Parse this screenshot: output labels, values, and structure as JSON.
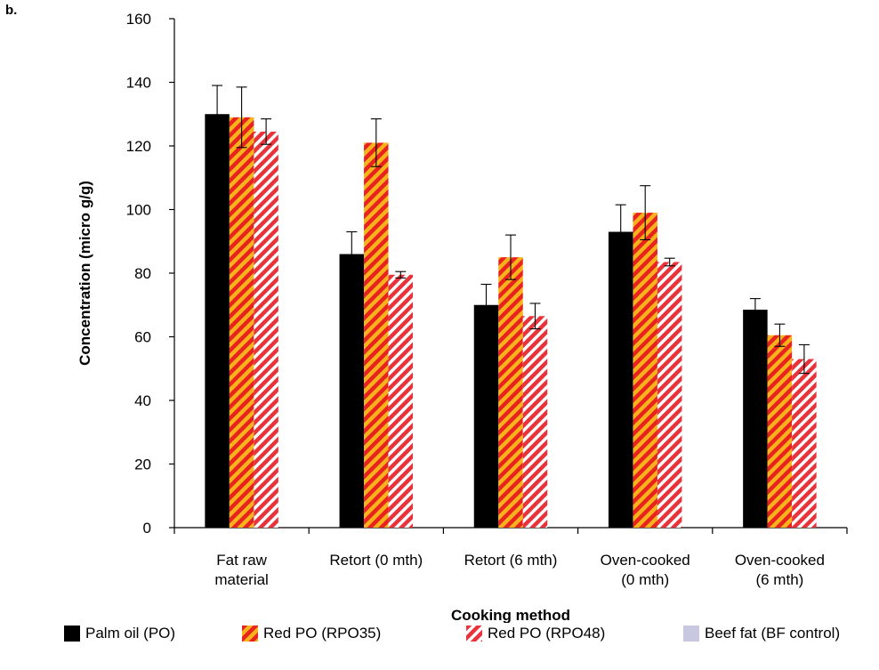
{
  "panel_label": "b.",
  "colors": {
    "axis": "#000000",
    "palm_oil": "#000000",
    "rpo35_primary": "#e8221e",
    "rpo35_secondary": "#f7b21c",
    "rpo48_primary": "#e8333b",
    "rpo48_secondary": "#ffffff",
    "beef_fat": "#c8c8e0"
  },
  "chart_data": {
    "type": "bar",
    "title": "",
    "xlabel": "Cooking method",
    "ylabel": "Concentration (micro g/g)",
    "ylim": [
      0,
      160
    ],
    "yticks": [
      "0",
      "20",
      "40",
      "60",
      "80",
      "100",
      "120",
      "140",
      "160"
    ],
    "categories": [
      [
        "Fat raw",
        "material"
      ],
      [
        "Retort (0 mth)"
      ],
      [
        "Retort (6 mth)"
      ],
      [
        "Oven-cooked",
        "(0 mth)"
      ],
      [
        "Oven-cooked",
        "(6 mth)"
      ]
    ],
    "legend_position": "bottom",
    "grid": false,
    "series": [
      {
        "name": "Palm oil (PO)",
        "pattern": "solid",
        "values": [
          130,
          86,
          70,
          93,
          68.5
        ],
        "errors": [
          9,
          7,
          6.5,
          8.5,
          3.5
        ]
      },
      {
        "name": "Red PO (RPO35)",
        "pattern": "stripe-yellow",
        "values": [
          129,
          121,
          85,
          99,
          60.5
        ],
        "errors": [
          9.5,
          7.5,
          7,
          8.5,
          3.5
        ]
      },
      {
        "name": "Red PO (RPO48)",
        "pattern": "stripe-white",
        "values": [
          124.5,
          79.5,
          66.5,
          83.5,
          53
        ],
        "errors": [
          4,
          1,
          4,
          1.2,
          4.5
        ]
      },
      {
        "name": "Beef fat (BF control)",
        "pattern": "light",
        "values": [
          null,
          null,
          null,
          null,
          null
        ],
        "errors": [
          null,
          null,
          null,
          null,
          null
        ]
      }
    ]
  }
}
